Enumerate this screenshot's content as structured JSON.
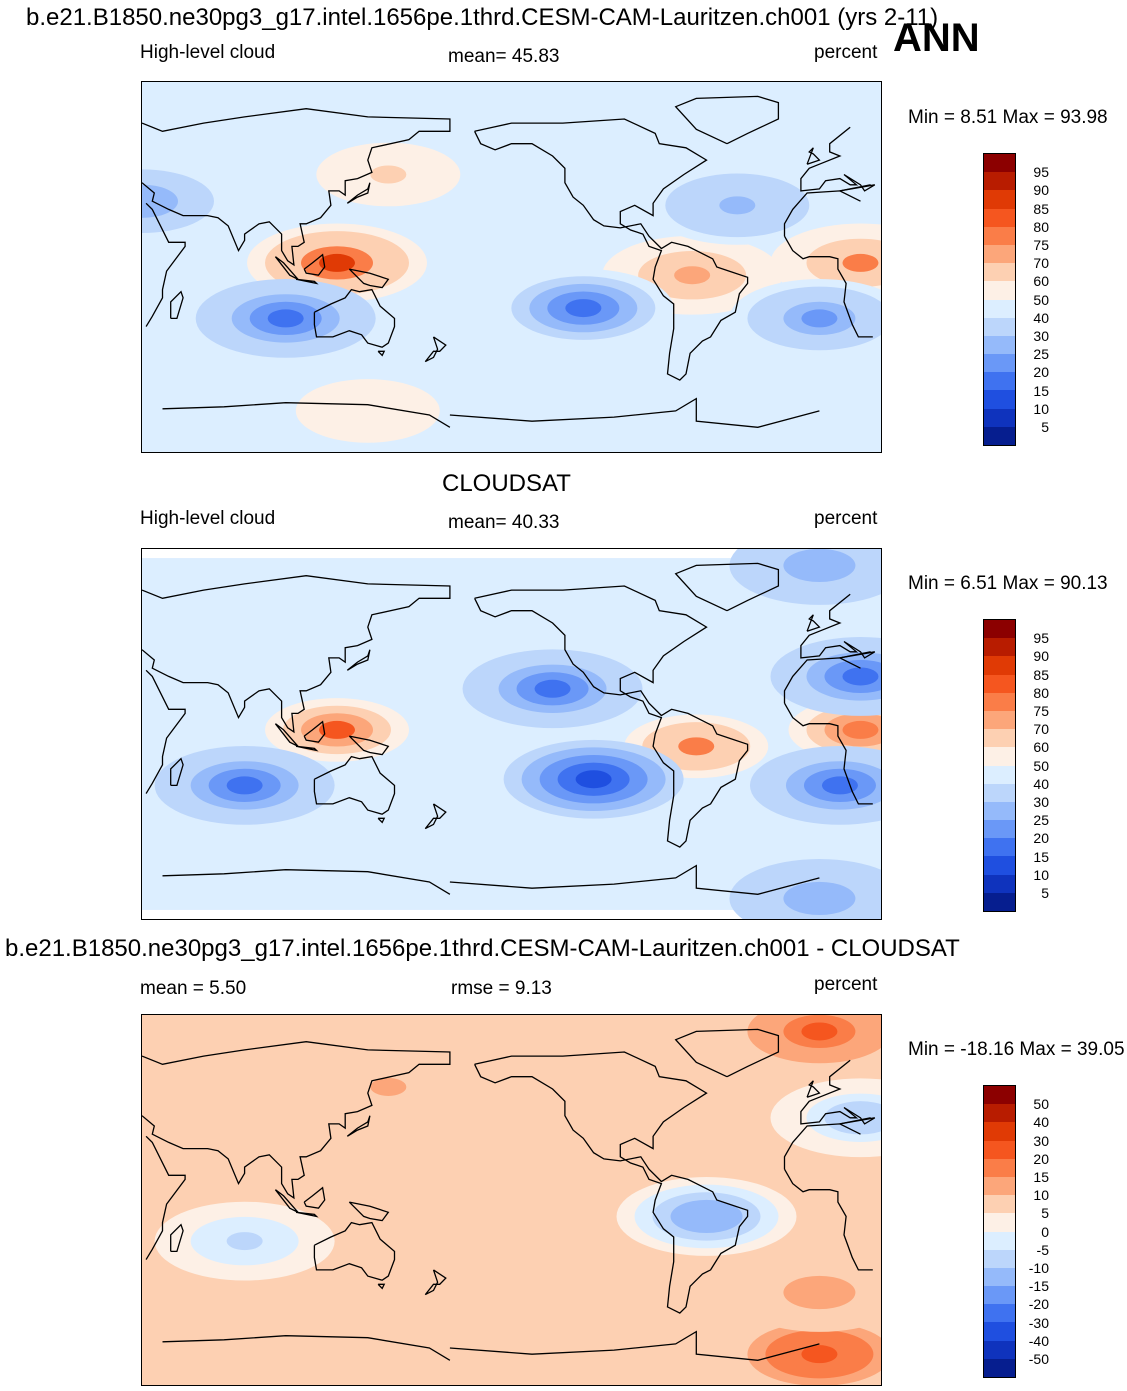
{
  "header": {
    "title": "b.e21.B1850.ne30pg3_g17.intel.1656pe.1thrd.CESM-CAM-Lauritzen.ch001 (yrs 2-11)",
    "season": "ANN"
  },
  "panels": [
    {
      "id": "model",
      "heading": "",
      "left_label": "High-level cloud",
      "center_label": "mean=  45.83",
      "right_label": "percent",
      "minmax": "Min =    8.51 Max =  93.98"
    },
    {
      "id": "obs",
      "heading": "CLOUDSAT",
      "left_label": "High-level cloud",
      "center_label": "mean=  40.33",
      "right_label": "percent",
      "minmax": "Min =    6.51 Max =  90.13"
    },
    {
      "id": "diff",
      "heading": "b.e21.B1850.ne30pg3_g17.intel.1656pe.1thrd.CESM-CAM-Lauritzen.ch001 - CLOUDSAT",
      "left_label": "mean =    5.50",
      "center_label": "rmse =    9.13",
      "right_label": "percent",
      "minmax": "Min = -18.16 Max =  39.05"
    }
  ],
  "colorbars": {
    "absolute": {
      "labels": [
        "95",
        "90",
        "85",
        "80",
        "75",
        "70",
        "60",
        "50",
        "40",
        "30",
        "25",
        "20",
        "15",
        "10",
        "5"
      ],
      "colors": [
        "#8c0000",
        "#b81c00",
        "#e03a05",
        "#f5561f",
        "#fa7d48",
        "#fca67a",
        "#fdd0b2",
        "#fdf0e6",
        "#dceeff",
        "#bcd6fb",
        "#95bafa",
        "#6a98f7",
        "#3f72f0",
        "#1f4fe0",
        "#0f33bd",
        "#061e8f"
      ]
    },
    "difference": {
      "labels": [
        "50",
        "40",
        "30",
        "20",
        "15",
        "10",
        "5",
        "0",
        "-5",
        "-10",
        "-15",
        "-20",
        "-30",
        "-40",
        "-50"
      ],
      "colors": [
        "#8c0000",
        "#b81c00",
        "#e03a05",
        "#f5561f",
        "#fa7d48",
        "#fca67a",
        "#fdd0b2",
        "#fdf0e6",
        "#dceeff",
        "#bcd6fb",
        "#95bafa",
        "#6a98f7",
        "#3f72f0",
        "#1f4fe0",
        "#0f33bd",
        "#061e8f"
      ]
    }
  },
  "chart_data": [
    {
      "type": "heatmap",
      "title": "High-level cloud",
      "field": "model",
      "units": "percent",
      "mean": 45.83,
      "min": 8.51,
      "max": 93.98,
      "levels": [
        5,
        10,
        15,
        20,
        25,
        30,
        40,
        50,
        60,
        70,
        75,
        80,
        85,
        90,
        95
      ],
      "features": [
        {
          "lon": 125,
          "lat": 2,
          "value": 85
        },
        {
          "lon": 20,
          "lat": 2,
          "value": 75
        },
        {
          "lon": -62,
          "lat": -4,
          "value": 72
        },
        {
          "lon": 100,
          "lat": -25,
          "value": 15
        },
        {
          "lon": -115,
          "lat": -20,
          "value": 18
        },
        {
          "lon": 0,
          "lat": -25,
          "value": 22
        },
        {
          "lon": 30,
          "lat": 32,
          "value": 25
        },
        {
          "lon": -40,
          "lat": 30,
          "value": 28
        },
        {
          "lon": 150,
          "lat": 45,
          "value": 60
        },
        {
          "lon": 140,
          "lat": -70,
          "value": 58
        }
      ]
    },
    {
      "type": "heatmap",
      "title": "CLOUDSAT High-level cloud",
      "field": "obs",
      "units": "percent",
      "mean": 40.33,
      "min": 6.51,
      "max": 90.13,
      "levels": [
        5,
        10,
        15,
        20,
        25,
        30,
        40,
        50,
        60,
        70,
        75,
        80,
        85,
        90,
        95
      ],
      "features": [
        {
          "lon": 125,
          "lat": 2,
          "value": 82
        },
        {
          "lon": 20,
          "lat": 2,
          "value": 78
        },
        {
          "lon": -60,
          "lat": -6,
          "value": 75
        },
        {
          "lon": 80,
          "lat": -25,
          "value": 15
        },
        {
          "lon": -110,
          "lat": -22,
          "value": 12
        },
        {
          "lon": 10,
          "lat": -25,
          "value": 15
        },
        {
          "lon": 20,
          "lat": 28,
          "value": 18
        },
        {
          "lon": -130,
          "lat": 22,
          "value": 15
        },
        {
          "lon": 0,
          "lat": 82,
          "value": 25
        },
        {
          "lon": 0,
          "lat": -80,
          "value": 25
        }
      ]
    },
    {
      "type": "heatmap",
      "title": "model - CLOUDSAT",
      "field": "difference",
      "units": "percent",
      "mean": 5.5,
      "rmse": 9.13,
      "min": -18.16,
      "max": 39.05,
      "levels": [
        -50,
        -40,
        -30,
        -20,
        -15,
        -10,
        -5,
        0,
        5,
        10,
        15,
        20,
        30,
        40,
        50
      ],
      "features": [
        {
          "lon": 0,
          "lat": 82,
          "value": 20
        },
        {
          "lon": 0,
          "lat": -75,
          "value": 22
        },
        {
          "lon": 20,
          "lat": 40,
          "value": -8
        },
        {
          "lon": 80,
          "lat": -20,
          "value": -6
        },
        {
          "lon": -55,
          "lat": -8,
          "value": -15
        },
        {
          "lon": 0,
          "lat": -45,
          "value": 12
        },
        {
          "lon": -150,
          "lat": 10,
          "value": 8
        },
        {
          "lon": 150,
          "lat": 55,
          "value": 10
        }
      ]
    }
  ]
}
